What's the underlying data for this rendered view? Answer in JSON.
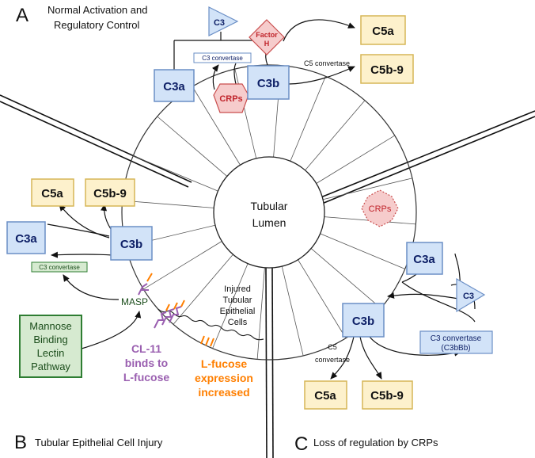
{
  "panels": {
    "a": {
      "letter": "A",
      "title_line1": "Normal Activation and",
      "title_line2": "Regulatory Control"
    },
    "b": {
      "letter": "B",
      "title": "Tubular Epithelial Cell Injury"
    },
    "c": {
      "letter": "C",
      "title": "Loss of regulation by CRPs"
    }
  },
  "lumen": {
    "line1": "Tubular",
    "line2": "Lumen"
  },
  "injured": {
    "line1": "Injured",
    "line2": "Tubular",
    "line3": "Epithelial",
    "line4": "Cells"
  },
  "panel_a": {
    "c3": "C3",
    "factor_h_line1": "Factor",
    "factor_h_line2": "H",
    "c3_convertase": "C3 convertase",
    "c3a": "C3a",
    "c3b": "C3b",
    "crps": "CRPs",
    "c5_convertase": "C5 convertase",
    "c5a": "C5a",
    "c5b9": "C5b-9"
  },
  "panel_b": {
    "c5a": "C5a",
    "c5b9": "C5b-9",
    "c3a": "C3a",
    "c3b": "C3b",
    "c3_convertase": "C3 convertase",
    "masp": "MASP",
    "mbl_line1": "Mannose",
    "mbl_line2": "Binding",
    "mbl_line3": "Lectin",
    "mbl_line4": "Pathway",
    "cl11_line1": "CL-11",
    "cl11_line2": "binds to",
    "cl11_line3": "L-fucose",
    "lfuc_line1": "L-fucose",
    "lfuc_line2": "expression",
    "lfuc_line3": "increased"
  },
  "panel_c": {
    "crps": "CRPs",
    "c3a": "C3a",
    "c3": "C3",
    "c3b": "C3b",
    "conv_line1": "C3 convertase",
    "conv_line2": "(C3bBb)",
    "c5_line1": "C5",
    "c5_line2": "convertase",
    "c5a": "C5a",
    "c5b9": "C5b-9"
  },
  "colors": {
    "blue_fill": "#d2e3f8",
    "blue_stroke": "#6b8fc6",
    "blue_text": "#0d1f66",
    "yellow_fill": "#fdf1cc",
    "yellow_stroke": "#d6b656",
    "red_fill": "#f6cccc",
    "red_stroke": "#c94d4d",
    "red_text": "#c0242b",
    "green_fill": "#d6ead0",
    "green_stroke": "#2e7d32",
    "green_text": "#1b4d1b",
    "purple": "#9a5fb0",
    "orange": "#ff7f00"
  }
}
